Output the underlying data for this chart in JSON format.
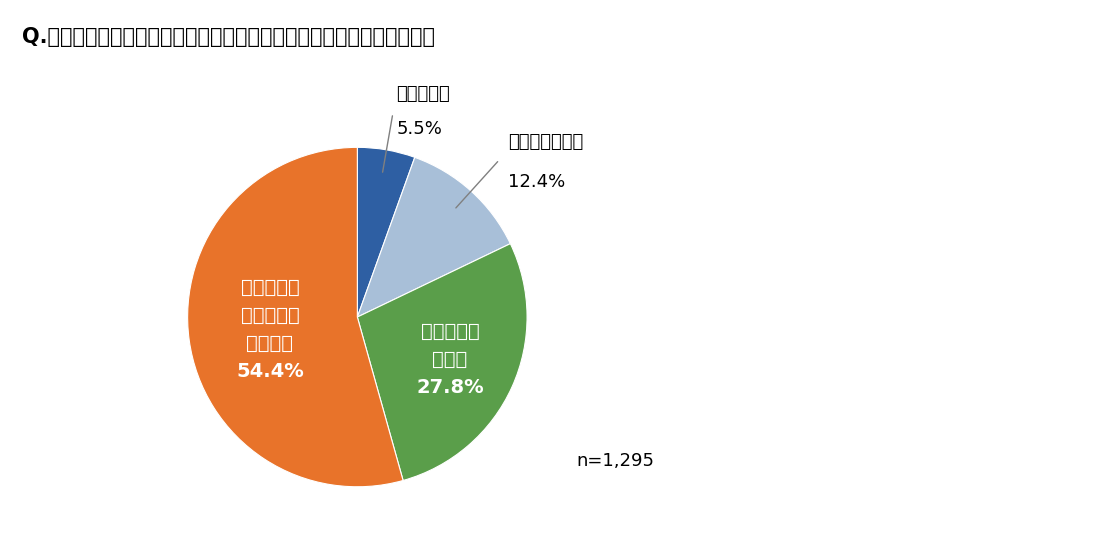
{
  "title": "Q.あなたは「サーキュラーエコノミー」という言葉を知っていますか？",
  "slices": [
    5.5,
    12.4,
    27.8,
    54.4
  ],
  "colors": [
    "#2E5FA3",
    "#A8BFD8",
    "#5A9E4A",
    "#E8732A"
  ],
  "label0_line": "知っている",
  "label0_pct": "5.5%",
  "label1_line": "大体知っている",
  "label1_pct": "12.4%",
  "label2_line1": "聞いたこと",
  "label2_line2": "はある",
  "label2_pct": "27.8%",
  "label3_line1": "聞いたこと",
  "label3_line2": "もないし、",
  "label3_line3": "知らない",
  "label3_pct": "54.4%",
  "n_text": "n=1,295",
  "startangle": 90,
  "title_fontsize": 15,
  "outside_label_fontsize": 13,
  "inside_label_fontsize": 14,
  "n_fontsize": 13
}
